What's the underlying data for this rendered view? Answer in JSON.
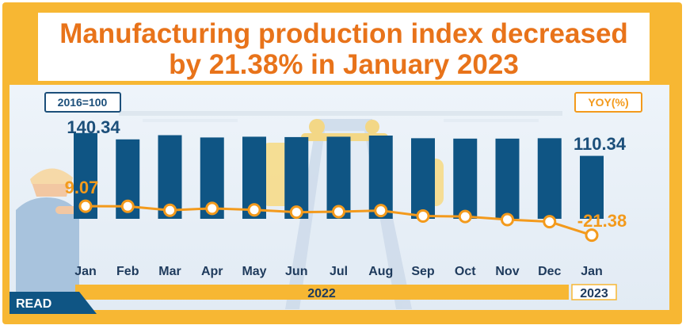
{
  "title_line1": "Manufacturing  production index decreased",
  "title_line2": "by 21.38%  in January  2023",
  "base_label": "2016=100",
  "yoy_label": "YOY(%)",
  "read_label": "READ",
  "year_2022": "2022",
  "year_2023": "2023",
  "colors": {
    "bar": "#0f5584",
    "line": "#f39a1c",
    "title": "#e8731a",
    "frame": "#f7b733"
  },
  "chart_data": {
    "type": "bar",
    "categories": [
      "Jan",
      "Feb",
      "Mar",
      "Apr",
      "May",
      "Jun",
      "Jul",
      "Aug",
      "Sep",
      "Oct",
      "Nov",
      "Dec",
      "Jan"
    ],
    "series": [
      {
        "name": "2016=100",
        "type": "bar",
        "values": [
          140.34,
          132.0,
          137.5,
          134.5,
          135.5,
          135.0,
          135.5,
          137.0,
          133.5,
          133.0,
          133.0,
          133.5,
          110.34
        ]
      },
      {
        "name": "YOY(%)",
        "type": "line",
        "values": [
          9.07,
          9.0,
          4.8,
          6.8,
          5.2,
          2.8,
          3.3,
          4.5,
          -1.2,
          -1.8,
          -5.0,
          -7.2,
          -21.38
        ]
      }
    ],
    "labeled_points": {
      "bar_first": "140.34",
      "bar_last": "110.34",
      "yoy_first": "9.07",
      "yoy_last": "-21.38"
    },
    "legend_position": "top"
  }
}
